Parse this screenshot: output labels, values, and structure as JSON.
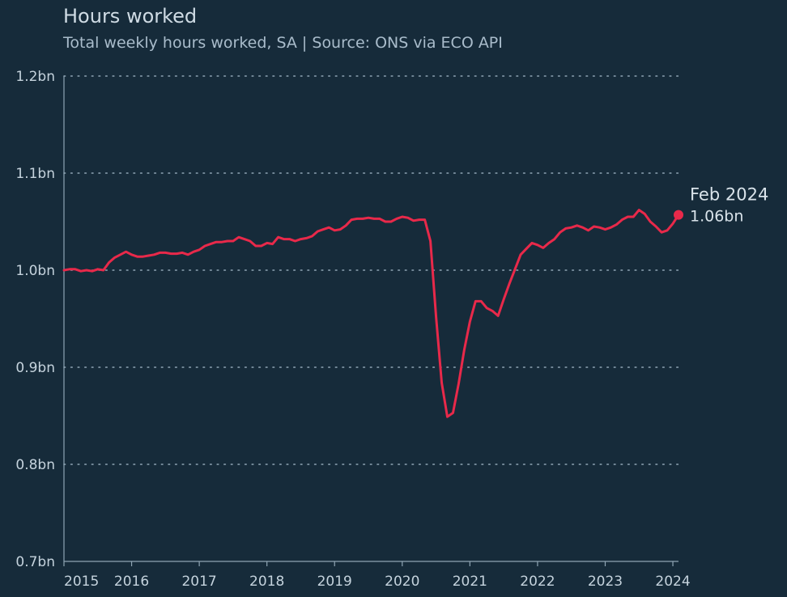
{
  "colors": {
    "background": "#162b3a",
    "line": "#e8294a",
    "grid": "#8fa5b4",
    "axis": "#8fa5b4",
    "text": "#c5d3dd"
  },
  "chart_data": {
    "type": "line",
    "title": "Hours worked",
    "subtitle": "Total weekly hours worked, SA | Source: ONS via ECO API",
    "xlabel": "",
    "ylabel": "",
    "ylim": [
      0.7,
      1.2
    ],
    "y_unit": "bn",
    "y_ticks": [
      {
        "value": 1.2,
        "label": "1.2bn"
      },
      {
        "value": 1.1,
        "label": "1.1bn"
      },
      {
        "value": 1.0,
        "label": "1.0bn"
      },
      {
        "value": 0.9,
        "label": "0.9bn"
      },
      {
        "value": 0.8,
        "label": "0.8bn"
      },
      {
        "value": 0.7,
        "label": "0.7bn"
      }
    ],
    "xlim": [
      "2015-01",
      "2024-02"
    ],
    "x_ticks": [
      {
        "value": "2015-01",
        "label": "2015"
      },
      {
        "value": "2016-01",
        "label": "2016"
      },
      {
        "value": "2017-01",
        "label": "2017"
      },
      {
        "value": "2018-01",
        "label": "2018"
      },
      {
        "value": "2019-01",
        "label": "2019"
      },
      {
        "value": "2020-01",
        "label": "2020"
      },
      {
        "value": "2021-01",
        "label": "2021"
      },
      {
        "value": "2022-01",
        "label": "2022"
      },
      {
        "value": "2023-01",
        "label": "2023"
      },
      {
        "value": "2024-01",
        "label": "2024"
      }
    ],
    "grid": "horizontal dotted",
    "series": [
      {
        "color": "#e8294a",
        "points": [
          [
            "2015-01",
            1.0
          ],
          [
            "2015-02",
            1.001
          ],
          [
            "2015-03",
            1.001
          ],
          [
            "2015-04",
            0.999
          ],
          [
            "2015-05",
            1.0
          ],
          [
            "2015-06",
            0.999
          ],
          [
            "2015-07",
            1.001
          ],
          [
            "2015-08",
            1.0
          ],
          [
            "2015-09",
            1.008
          ],
          [
            "2015-10",
            1.013
          ],
          [
            "2015-11",
            1.016
          ],
          [
            "2015-12",
            1.019
          ],
          [
            "2016-01",
            1.016
          ],
          [
            "2016-02",
            1.014
          ],
          [
            "2016-03",
            1.014
          ],
          [
            "2016-04",
            1.015
          ],
          [
            "2016-05",
            1.016
          ],
          [
            "2016-06",
            1.018
          ],
          [
            "2016-07",
            1.018
          ],
          [
            "2016-08",
            1.017
          ],
          [
            "2016-09",
            1.017
          ],
          [
            "2016-10",
            1.018
          ],
          [
            "2016-11",
            1.016
          ],
          [
            "2016-12",
            1.019
          ],
          [
            "2017-01",
            1.021
          ],
          [
            "2017-02",
            1.025
          ],
          [
            "2017-03",
            1.027
          ],
          [
            "2017-04",
            1.029
          ],
          [
            "2017-05",
            1.029
          ],
          [
            "2017-06",
            1.03
          ],
          [
            "2017-07",
            1.03
          ],
          [
            "2017-08",
            1.034
          ],
          [
            "2017-09",
            1.032
          ],
          [
            "2017-10",
            1.03
          ],
          [
            "2017-11",
            1.025
          ],
          [
            "2017-12",
            1.025
          ],
          [
            "2018-01",
            1.028
          ],
          [
            "2018-02",
            1.027
          ],
          [
            "2018-03",
            1.034
          ],
          [
            "2018-04",
            1.032
          ],
          [
            "2018-05",
            1.032
          ],
          [
            "2018-06",
            1.03
          ],
          [
            "2018-07",
            1.032
          ],
          [
            "2018-08",
            1.033
          ],
          [
            "2018-09",
            1.035
          ],
          [
            "2018-10",
            1.04
          ],
          [
            "2018-11",
            1.042
          ],
          [
            "2018-12",
            1.044
          ],
          [
            "2019-01",
            1.041
          ],
          [
            "2019-02",
            1.042
          ],
          [
            "2019-03",
            1.046
          ],
          [
            "2019-04",
            1.052
          ],
          [
            "2019-05",
            1.053
          ],
          [
            "2019-06",
            1.053
          ],
          [
            "2019-07",
            1.054
          ],
          [
            "2019-08",
            1.053
          ],
          [
            "2019-09",
            1.053
          ],
          [
            "2019-10",
            1.05
          ],
          [
            "2019-11",
            1.05
          ],
          [
            "2019-12",
            1.053
          ],
          [
            "2020-01",
            1.055
          ],
          [
            "2020-02",
            1.054
          ],
          [
            "2020-03",
            1.051
          ],
          [
            "2020-04",
            1.052
          ],
          [
            "2020-05",
            1.052
          ],
          [
            "2020-06",
            1.03
          ],
          [
            "2020-07",
            0.952
          ],
          [
            "2020-08",
            0.884
          ],
          [
            "2020-09",
            0.849
          ],
          [
            "2020-10",
            0.853
          ],
          [
            "2020-11",
            0.883
          ],
          [
            "2020-12",
            0.918
          ],
          [
            "2021-01",
            0.947
          ],
          [
            "2021-02",
            0.968
          ],
          [
            "2021-03",
            0.968
          ],
          [
            "2021-04",
            0.961
          ],
          [
            "2021-05",
            0.958
          ],
          [
            "2021-06",
            0.953
          ],
          [
            "2021-07",
            0.97
          ],
          [
            "2021-08",
            0.986
          ],
          [
            "2021-09",
            1.001
          ],
          [
            "2021-10",
            1.016
          ],
          [
            "2021-11",
            1.022
          ],
          [
            "2021-12",
            1.028
          ],
          [
            "2022-01",
            1.026
          ],
          [
            "2022-02",
            1.023
          ],
          [
            "2022-03",
            1.028
          ],
          [
            "2022-04",
            1.032
          ],
          [
            "2022-05",
            1.039
          ],
          [
            "2022-06",
            1.043
          ],
          [
            "2022-07",
            1.044
          ],
          [
            "2022-08",
            1.046
          ],
          [
            "2022-09",
            1.044
          ],
          [
            "2022-10",
            1.041
          ],
          [
            "2022-11",
            1.045
          ],
          [
            "2022-12",
            1.044
          ],
          [
            "2023-01",
            1.042
          ],
          [
            "2023-02",
            1.044
          ],
          [
            "2023-03",
            1.047
          ],
          [
            "2023-04",
            1.052
          ],
          [
            "2023-05",
            1.055
          ],
          [
            "2023-06",
            1.055
          ],
          [
            "2023-07",
            1.062
          ],
          [
            "2023-08",
            1.058
          ],
          [
            "2023-09",
            1.05
          ],
          [
            "2023-10",
            1.045
          ],
          [
            "2023-11",
            1.039
          ],
          [
            "2023-12",
            1.041
          ],
          [
            "2024-01",
            1.048
          ],
          [
            "2024-02",
            1.057
          ]
        ]
      }
    ],
    "annotation": {
      "date_label": "Feb 2024",
      "value_label": "1.06bn",
      "x": "2024-02",
      "y": 1.057
    }
  }
}
